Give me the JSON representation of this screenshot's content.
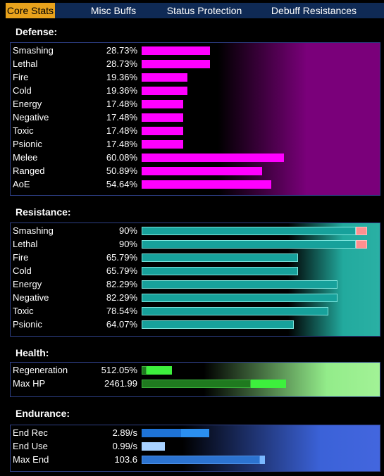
{
  "tabs": [
    {
      "label": "Core Stats",
      "active": true
    },
    {
      "label": "Misc Buffs",
      "active": false
    },
    {
      "label": "Status Protection",
      "active": false
    },
    {
      "label": "Debuff Resistances",
      "active": false
    }
  ],
  "defense": {
    "title": "Defense:",
    "rows": [
      {
        "label": "Smashing",
        "value": "28.73%",
        "level": 28.73
      },
      {
        "label": "Lethal",
        "value": "28.73%",
        "level": 28.73
      },
      {
        "label": "Fire",
        "value": "19.36%",
        "level": 19.36
      },
      {
        "label": "Cold",
        "value": "19.36%",
        "level": 19.36
      },
      {
        "label": "Energy",
        "value": "17.48%",
        "level": 17.48
      },
      {
        "label": "Negative",
        "value": "17.48%",
        "level": 17.48
      },
      {
        "label": "Toxic",
        "value": "17.48%",
        "level": 17.48
      },
      {
        "label": "Psionic",
        "value": "17.48%",
        "level": 17.48
      },
      {
        "label": "Melee",
        "value": "60.08%",
        "level": 60.08
      },
      {
        "label": "Ranged",
        "value": "50.89%",
        "level": 50.89
      },
      {
        "label": "AoE",
        "value": "54.64%",
        "level": 54.64
      }
    ]
  },
  "resistance": {
    "title": "Resistance:",
    "rows": [
      {
        "label": "Smashing",
        "value": "90%",
        "level": 90,
        "capped": true
      },
      {
        "label": "Lethal",
        "value": "90%",
        "level": 90,
        "capped": true
      },
      {
        "label": "Fire",
        "value": "65.79%",
        "level": 65.79
      },
      {
        "label": "Cold",
        "value": "65.79%",
        "level": 65.79
      },
      {
        "label": "Energy",
        "value": "82.29%",
        "level": 82.29
      },
      {
        "label": "Negative",
        "value": "82.29%",
        "level": 82.29
      },
      {
        "label": "Toxic",
        "value": "78.54%",
        "level": 78.54
      },
      {
        "label": "Psionic",
        "value": "64.07%",
        "level": 64.07
      }
    ]
  },
  "health": {
    "title": "Health:",
    "rows": [
      {
        "label": "Regeneration",
        "value": "512.05%",
        "segments": [
          0.02,
          0.13
        ]
      },
      {
        "label": "Max HP",
        "value": "2461.99",
        "segments": [
          0.47,
          0.62
        ]
      }
    ]
  },
  "endurance": {
    "title": "Endurance:",
    "rows": [
      {
        "label": "End Rec",
        "value": "2.89/s",
        "segments": [
          0.17,
          0.29
        ]
      },
      {
        "label": "End Use",
        "value": "0.99/s",
        "segments": [
          0.1
        ]
      },
      {
        "label": "Max End",
        "value": "103.6",
        "segments": [
          0.51,
          0.53
        ]
      }
    ]
  },
  "colors": {
    "tab_active": "#e8a21c",
    "tab_bar": "#0f2a55",
    "panel_border": "#2e3f86",
    "defense_bar": "#ff00ff",
    "resistance_bar": "#17a19b",
    "resistance_cap": "#ff8f8f",
    "health_bar": "#3df03d",
    "endurance_bar": "#2b8ff0"
  }
}
